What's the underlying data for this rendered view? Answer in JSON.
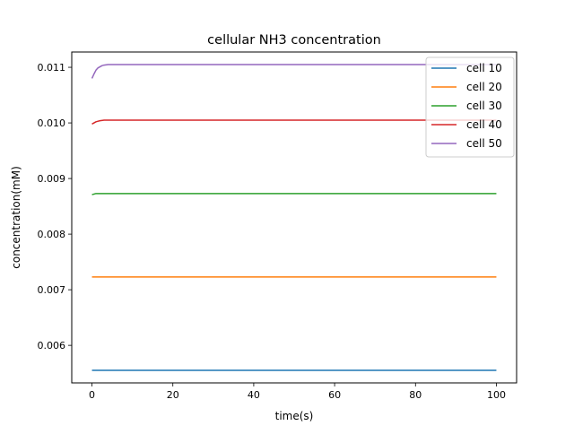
{
  "chart_data": {
    "type": "line",
    "title": "cellular NH3 concentration",
    "xlabel": "time(s)",
    "ylabel": "concentration(mM)",
    "xlim": [
      -5,
      105
    ],
    "ylim": [
      0.005325,
      0.011275
    ],
    "x_ticks": [
      0,
      20,
      40,
      60,
      80,
      100
    ],
    "y_ticks": [
      0.006,
      0.007,
      0.008,
      0.009,
      0.01,
      0.011
    ],
    "y_tick_labels": [
      "0.006",
      "0.007",
      "0.008",
      "0.009",
      "0.010",
      "0.011"
    ],
    "grid": false,
    "legend_position": "top-right",
    "series": [
      {
        "name": "cell 10",
        "color": "#1f77b4",
        "x": [
          0,
          1,
          2,
          3,
          5,
          10,
          20,
          40,
          60,
          80,
          100
        ],
        "y": [
          0.00555,
          0.00555,
          0.00555,
          0.00555,
          0.00555,
          0.00555,
          0.00555,
          0.00555,
          0.00555,
          0.00555,
          0.00555
        ]
      },
      {
        "name": "cell 20",
        "color": "#ff7f0e",
        "x": [
          0,
          1,
          2,
          3,
          5,
          10,
          20,
          40,
          60,
          80,
          100
        ],
        "y": [
          0.00723,
          0.00723,
          0.00723,
          0.00723,
          0.00723,
          0.00723,
          0.00723,
          0.00723,
          0.00723,
          0.00723,
          0.00723
        ]
      },
      {
        "name": "cell 30",
        "color": "#2ca02c",
        "x": [
          0,
          0.5,
          1,
          2,
          3,
          5,
          10,
          20,
          40,
          60,
          80,
          100
        ],
        "y": [
          0.00871,
          0.00872,
          0.00873,
          0.00873,
          0.00873,
          0.00873,
          0.00873,
          0.00873,
          0.00873,
          0.00873,
          0.00873,
          0.00873
        ]
      },
      {
        "name": "cell 40",
        "color": "#d62728",
        "x": [
          0,
          0.5,
          1,
          1.5,
          2,
          3,
          4,
          5,
          10,
          20,
          40,
          60,
          80,
          100
        ],
        "y": [
          0.00998,
          0.01,
          0.01002,
          0.01003,
          0.01004,
          0.01005,
          0.01005,
          0.01005,
          0.01005,
          0.01005,
          0.01005,
          0.01005,
          0.01005,
          0.01005
        ]
      },
      {
        "name": "cell 50",
        "color": "#9467bd",
        "x": [
          0,
          0.5,
          1,
          1.5,
          2,
          2.5,
          3,
          4,
          5,
          6,
          8,
          10,
          20,
          40,
          60,
          80,
          100
        ],
        "y": [
          0.0108,
          0.01088,
          0.01095,
          0.01099,
          0.01101,
          0.01103,
          0.01104,
          0.01105,
          0.01105,
          0.01105,
          0.01105,
          0.01105,
          0.01105,
          0.01105,
          0.01105,
          0.01105,
          0.01105
        ]
      }
    ]
  }
}
